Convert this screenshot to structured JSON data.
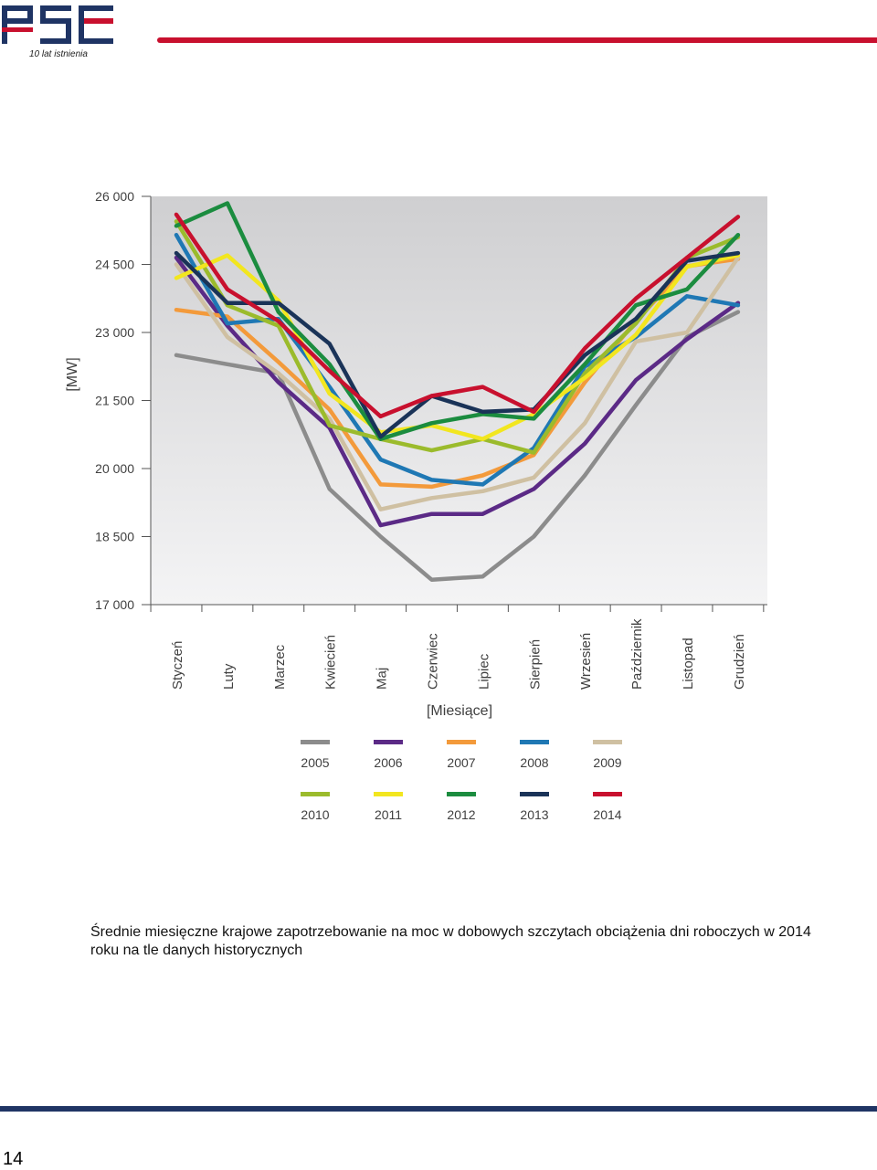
{
  "header": {
    "logo_text": "PSE",
    "tagline": "10 lat istnienia"
  },
  "chart_data": {
    "type": "line",
    "ylabel": "[MW]",
    "xlabel": "[Miesiące]",
    "ylim": [
      17000,
      26000
    ],
    "yticks": [
      26000,
      24500,
      23000,
      21500,
      20000,
      18500,
      17000
    ],
    "ytick_labels": [
      "26 000",
      "24 500",
      "23 000",
      "21 500",
      "20 000",
      "18 500",
      "17 000"
    ],
    "categories": [
      "Styczeń",
      "Luty",
      "Marzec",
      "Kwiecień",
      "Maj",
      "Czerwiec",
      "Lipiec",
      "Sierpień",
      "Wrzesień",
      "Październik",
      "Listopad",
      "Grudzień"
    ],
    "grid": false,
    "legend_position": "bottom",
    "series": [
      {
        "name": "2005",
        "color": "#8c8c8c",
        "values": [
          22500,
          22300,
          22100,
          19550,
          18500,
          17550,
          17620,
          18500,
          19850,
          21400,
          22900,
          23450
        ]
      },
      {
        "name": "2006",
        "color": "#5b2a86",
        "values": [
          24650,
          23150,
          21900,
          20900,
          18750,
          19000,
          19000,
          19550,
          20550,
          21950,
          22850,
          23650
        ]
      },
      {
        "name": "2007",
        "color": "#f39a3b",
        "values": [
          23500,
          23350,
          22350,
          21300,
          19650,
          19600,
          19850,
          20300,
          21900,
          23250,
          24460,
          24620
        ]
      },
      {
        "name": "2008",
        "color": "#1f78b4",
        "values": [
          25150,
          23200,
          23300,
          21800,
          20200,
          19750,
          19650,
          20450,
          22250,
          22900,
          23800,
          23600
        ]
      },
      {
        "name": "2009",
        "color": "#cfc0a2",
        "values": [
          24500,
          22900,
          22100,
          21100,
          19100,
          19350,
          19500,
          19800,
          21000,
          22800,
          23000,
          24650
        ]
      },
      {
        "name": "2010",
        "color": "#9bbb2c",
        "values": [
          25450,
          23600,
          23150,
          20950,
          20650,
          20400,
          20650,
          20350,
          22100,
          23200,
          24650,
          25100
        ]
      },
      {
        "name": "2011",
        "color": "#f2e61f",
        "values": [
          24200,
          24700,
          23700,
          21650,
          20800,
          20950,
          20650,
          21200,
          22000,
          22950,
          24450,
          24700
        ]
      },
      {
        "name": "2012",
        "color": "#1b8c3f",
        "values": [
          25350,
          25850,
          23450,
          22300,
          20650,
          21000,
          21200,
          21100,
          22300,
          23600,
          23950,
          25150
        ]
      },
      {
        "name": "2013",
        "color": "#1a3358",
        "values": [
          24750,
          23650,
          23650,
          22750,
          20700,
          21600,
          21250,
          21300,
          22500,
          23300,
          24580,
          24750
        ]
      },
      {
        "name": "2014",
        "color": "#c8102e",
        "values": [
          25600,
          23950,
          23250,
          22150,
          21150,
          21600,
          21800,
          21250,
          22650,
          23750,
          24650,
          25550
        ]
      }
    ]
  },
  "caption": {
    "text": "Średnie miesięczne krajowe zapotrzebowanie na moc w dobowych szczytach obciążenia dni roboczych w 2014 roku na tle danych historycznych"
  },
  "footer": {
    "page_number": "14"
  }
}
